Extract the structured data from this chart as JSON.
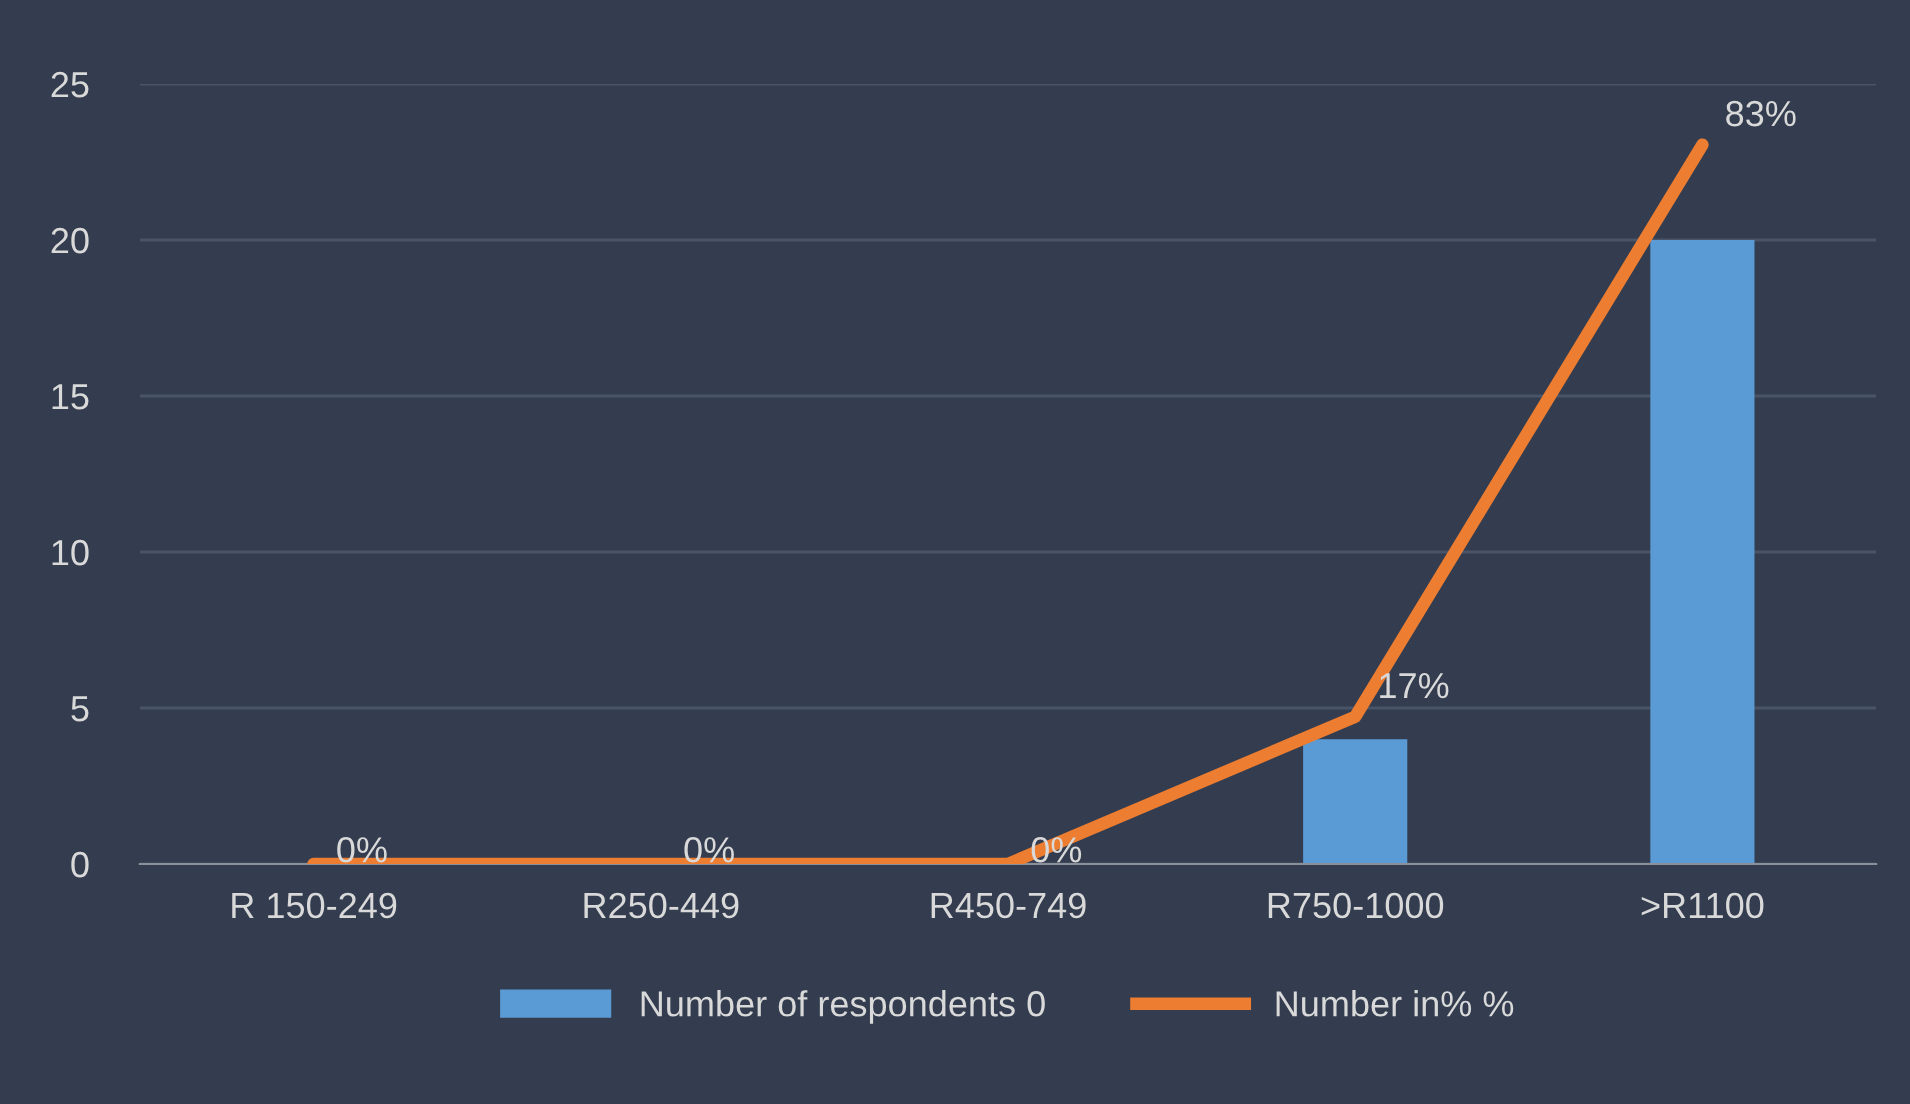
{
  "chart_data": {
    "type": "bar",
    "categories": [
      "R 150-249",
      "R250-449",
      "R450-749",
      "R750-1000",
      ">R1100"
    ],
    "series": [
      {
        "name": "Number of respondents 0",
        "color": "#5b9bd5",
        "values": [
          0,
          0,
          0,
          4,
          20
        ]
      },
      {
        "name": "Number in% %",
        "type": "line",
        "axis": "y2",
        "color": "#ed7d31",
        "values": [
          0,
          0,
          0,
          17,
          83
        ],
        "value_labels": [
          "0%",
          "0%",
          "0%",
          "17%",
          "83%"
        ]
      }
    ],
    "ylim": [
      0,
      25
    ],
    "yticks": [
      0,
      5,
      10,
      15,
      20,
      25
    ],
    "y2lim": [
      0,
      90
    ],
    "tick_labels": [
      "x",
      "y"
    ],
    "grid": "y",
    "legend": "bottom",
    "marker": "none",
    "line_style": "solid"
  }
}
